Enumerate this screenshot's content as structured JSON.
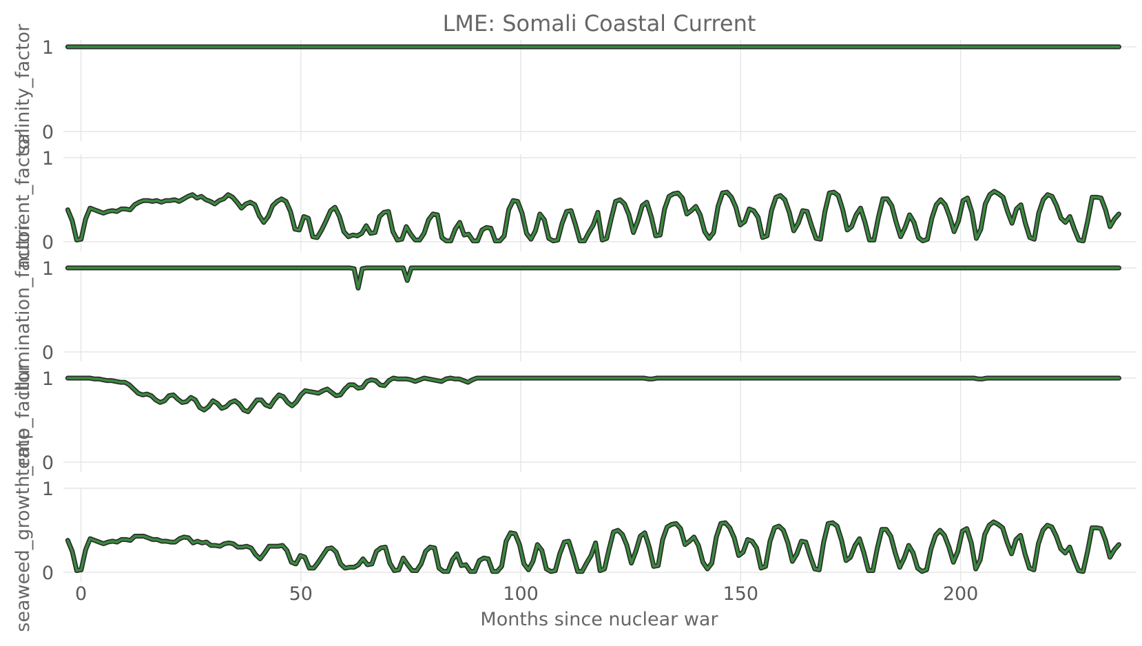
{
  "chart_data": {
    "type": "line",
    "title": "LME: Somali Coastal Current",
    "xlabel": "Months since nuclear war",
    "xlim": [
      -4,
      240
    ],
    "x_ticks": [
      "0",
      "50",
      "100",
      "150",
      "200"
    ],
    "x_tick_values": [
      0,
      50,
      100,
      150,
      200
    ],
    "y_ticks": [
      "0",
      "1"
    ],
    "y_tick_values": [
      0,
      1
    ],
    "colors": {
      "line": "#3a8a3e",
      "outline": "#2b2b2b",
      "grid": "#e5e5e5",
      "text": "#595959"
    },
    "panels": [
      {
        "ylabel": "salinity_factor",
        "ylim": [
          0,
          1
        ],
        "x_start": -3,
        "x_end": 236,
        "values": [
          1,
          1
        ]
      },
      {
        "ylabel": "nutrient_factor",
        "ylim": [
          0,
          1
        ],
        "x_start": -3,
        "x_end": 236,
        "values": [
          0.38,
          0.25,
          0.02,
          0.03,
          0.27,
          0.4,
          0.38,
          0.36,
          0.34,
          0.36,
          0.37,
          0.36,
          0.39,
          0.39,
          0.38,
          0.44,
          0.47,
          0.49,
          0.49,
          0.48,
          0.49,
          0.47,
          0.49,
          0.49,
          0.5,
          0.48,
          0.51,
          0.54,
          0.56,
          0.52,
          0.54,
          0.5,
          0.48,
          0.45,
          0.49,
          0.51,
          0.56,
          0.53,
          0.47,
          0.4,
          0.45,
          0.47,
          0.44,
          0.31,
          0.23,
          0.3,
          0.43,
          0.48,
          0.51,
          0.48,
          0.36,
          0.15,
          0.14,
          0.3,
          0.28,
          0.06,
          0.05,
          0.14,
          0.25,
          0.37,
          0.41,
          0.3,
          0.12,
          0.06,
          0.08,
          0.07,
          0.1,
          0.19,
          0.1,
          0.11,
          0.3,
          0.35,
          0.36,
          0.12,
          0.02,
          0.03,
          0.18,
          0.09,
          0.02,
          0.02,
          0.1,
          0.26,
          0.33,
          0.32,
          0.05,
          0.01,
          0.01,
          0.15,
          0.23,
          0.08,
          0.09,
          0.01,
          0.01,
          0.14,
          0.17,
          0.16,
          0.01,
          0.01,
          0.07,
          0.38,
          0.49,
          0.48,
          0.34,
          0.1,
          0.03,
          0.13,
          0.33,
          0.26,
          0.04,
          0.01,
          0.02,
          0.22,
          0.36,
          0.37,
          0.2,
          0.01,
          0.01,
          0.11,
          0.2,
          0.35,
          0.02,
          0.04,
          0.27,
          0.48,
          0.5,
          0.45,
          0.32,
          0.11,
          0.25,
          0.43,
          0.47,
          0.3,
          0.07,
          0.08,
          0.39,
          0.54,
          0.57,
          0.58,
          0.52,
          0.33,
          0.37,
          0.42,
          0.32,
          0.12,
          0.04,
          0.11,
          0.42,
          0.58,
          0.59,
          0.53,
          0.41,
          0.2,
          0.24,
          0.39,
          0.37,
          0.29,
          0.05,
          0.07,
          0.37,
          0.53,
          0.55,
          0.5,
          0.35,
          0.13,
          0.22,
          0.37,
          0.36,
          0.19,
          0.04,
          0.03,
          0.36,
          0.58,
          0.59,
          0.55,
          0.38,
          0.14,
          0.18,
          0.32,
          0.4,
          0.23,
          0.02,
          0.02,
          0.29,
          0.51,
          0.51,
          0.43,
          0.23,
          0.06,
          0.17,
          0.32,
          0.23,
          0.05,
          0.01,
          0.03,
          0.28,
          0.44,
          0.5,
          0.44,
          0.3,
          0.12,
          0.25,
          0.49,
          0.52,
          0.35,
          0.04,
          0.15,
          0.45,
          0.56,
          0.6,
          0.57,
          0.53,
          0.36,
          0.22,
          0.39,
          0.44,
          0.22,
          0.05,
          0.03,
          0.34,
          0.5,
          0.56,
          0.54,
          0.43,
          0.28,
          0.23,
          0.3,
          0.15,
          0.02,
          0.01,
          0.25,
          0.53,
          0.53,
          0.52,
          0.38,
          0.18,
          0.27,
          0.33
        ]
      },
      {
        "ylabel": "illumination_factor",
        "ylim": [
          0,
          1
        ],
        "x_start": -3,
        "x_end": 236,
        "values": [
          1,
          1,
          1,
          1,
          1,
          1,
          1,
          1,
          1,
          1,
          1,
          1,
          1,
          1,
          1,
          1,
          1,
          1,
          1,
          1,
          1,
          1,
          1,
          1,
          1,
          1,
          1,
          1,
          1,
          1,
          1,
          1,
          1,
          1,
          1,
          1,
          1,
          1,
          1,
          1,
          1,
          1,
          1,
          1,
          1,
          1,
          1,
          1,
          1,
          1,
          1,
          1,
          1,
          1,
          1,
          1,
          1,
          1,
          1,
          1,
          1,
          1,
          1,
          1,
          1,
          1,
          1,
          1,
          1,
          1,
          0.99,
          0.76,
          0.99,
          1,
          1,
          1,
          1,
          1,
          1,
          1,
          1,
          1,
          1,
          0.85,
          1,
          1,
          1,
          1,
          1,
          1,
          1,
          1,
          1,
          1,
          1,
          1,
          1,
          1,
          1,
          1,
          1,
          1,
          1,
          1,
          1,
          1,
          1,
          1,
          1,
          1,
          1,
          1,
          1,
          1,
          1,
          1,
          1,
          1,
          1,
          1,
          1,
          1,
          1,
          1,
          1,
          1,
          1,
          1,
          1,
          1,
          1,
          1,
          1,
          1,
          1,
          1,
          1,
          1,
          1,
          1,
          1,
          1,
          1,
          1,
          1,
          1,
          1,
          1,
          1,
          1,
          1,
          1,
          1,
          1,
          1,
          1,
          1,
          1,
          1,
          1,
          1,
          1,
          1,
          1,
          1,
          1,
          1,
          1,
          1,
          1,
          1,
          1,
          1,
          1,
          1,
          1,
          1,
          1,
          1,
          1,
          1,
          1,
          1,
          1,
          1,
          1,
          1,
          1,
          1,
          1,
          1,
          1,
          1,
          1,
          1,
          1,
          1,
          1,
          1,
          1,
          1,
          1,
          1,
          1,
          1,
          1,
          1,
          1,
          1,
          1,
          1,
          1,
          1,
          1,
          1,
          1,
          1,
          1,
          1,
          1,
          1,
          1,
          1,
          1,
          1,
          1,
          1,
          1,
          1,
          1,
          1,
          1,
          1,
          1,
          1,
          1,
          1,
          1,
          1,
          1,
          1,
          1,
          1,
          1,
          1,
          1,
          1,
          1,
          1,
          1,
          1,
          1,
          1,
          1,
          1,
          1,
          1,
          1
        ]
      },
      {
        "ylabel": "temp_factor",
        "ylim": [
          0,
          1
        ],
        "x_start": -3,
        "x_end": 236,
        "values": [
          1.0,
          1.0,
          1.0,
          1.0,
          1.0,
          1.0,
          0.99,
          0.99,
          0.98,
          0.97,
          0.97,
          0.96,
          0.95,
          0.95,
          0.92,
          0.87,
          0.82,
          0.8,
          0.81,
          0.79,
          0.74,
          0.71,
          0.73,
          0.79,
          0.8,
          0.75,
          0.71,
          0.72,
          0.77,
          0.74,
          0.65,
          0.62,
          0.66,
          0.73,
          0.7,
          0.64,
          0.66,
          0.71,
          0.73,
          0.69,
          0.62,
          0.6,
          0.67,
          0.74,
          0.74,
          0.68,
          0.66,
          0.74,
          0.8,
          0.78,
          0.71,
          0.67,
          0.72,
          0.8,
          0.85,
          0.84,
          0.83,
          0.82,
          0.85,
          0.87,
          0.83,
          0.79,
          0.8,
          0.87,
          0.92,
          0.92,
          0.88,
          0.89,
          0.96,
          0.98,
          0.97,
          0.92,
          0.91,
          0.97,
          1.0,
          0.99,
          0.99,
          0.99,
          0.98,
          0.96,
          0.98,
          1.0,
          0.99,
          0.98,
          0.97,
          0.96,
          0.99,
          1.0,
          0.99,
          0.99,
          0.97,
          0.95,
          0.98,
          1.0,
          1.0,
          1.0,
          1.0,
          1.0,
          1.0,
          1.0,
          1.0,
          1.0,
          1.0,
          1.0,
          1.0,
          1.0,
          1.0,
          1.0,
          1.0,
          1.0,
          1.0,
          1.0,
          1.0,
          1.0,
          1.0,
          1.0,
          1.0,
          1.0,
          1.0,
          1.0,
          1.0,
          1.0,
          1.0,
          1.0,
          1.0,
          1.0,
          1.0,
          1.0,
          1.0,
          1.0,
          1.0,
          1.0,
          0.99,
          0.99,
          1.0,
          1.0,
          1.0,
          1.0,
          1.0,
          1.0,
          1.0,
          1.0,
          1.0,
          1.0,
          1.0,
          1.0,
          1.0,
          1.0,
          1.0,
          1.0,
          1.0,
          1.0,
          1.0,
          1.0,
          1.0,
          1.0,
          1.0,
          1.0,
          1.0,
          1.0,
          1.0,
          1.0,
          1.0,
          1.0,
          1.0,
          1.0,
          1.0,
          1.0,
          1.0,
          1.0,
          1.0,
          1.0,
          1.0,
          1.0,
          1.0,
          1.0,
          1.0,
          1.0,
          1.0,
          1.0,
          1.0,
          1.0,
          1.0,
          1.0,
          1.0,
          1.0,
          1.0,
          1.0,
          1.0,
          1.0,
          1.0,
          1.0,
          1.0,
          1.0,
          1.0,
          1.0,
          1.0,
          1.0,
          1.0,
          1.0,
          1.0,
          1.0,
          1.0,
          1.0,
          1.0,
          1.0,
          1.0,
          0.99,
          0.99,
          1.0,
          1.0,
          1.0,
          1.0,
          1.0,
          1.0,
          1.0,
          1.0,
          1.0,
          1.0,
          1.0,
          1.0,
          1.0,
          1.0,
          1.0,
          1.0,
          1.0,
          1.0,
          1.0,
          1.0,
          1.0,
          1.0,
          1.0,
          1.0,
          1.0,
          1.0,
          1.0,
          1.0,
          1.0,
          1.0,
          1.0
        ]
      },
      {
        "ylabel": "seaweed_growth_rate",
        "ylim": [
          0,
          1
        ],
        "x_start": -3,
        "x_end": 236,
        "values": [
          0.38,
          0.25,
          0.02,
          0.03,
          0.27,
          0.4,
          0.38,
          0.36,
          0.34,
          0.36,
          0.37,
          0.36,
          0.39,
          0.39,
          0.38,
          0.43,
          0.43,
          0.43,
          0.41,
          0.39,
          0.39,
          0.37,
          0.37,
          0.36,
          0.36,
          0.4,
          0.42,
          0.41,
          0.35,
          0.37,
          0.35,
          0.36,
          0.32,
          0.32,
          0.31,
          0.34,
          0.35,
          0.34,
          0.3,
          0.3,
          0.31,
          0.29,
          0.21,
          0.16,
          0.23,
          0.31,
          0.31,
          0.31,
          0.32,
          0.26,
          0.12,
          0.1,
          0.2,
          0.18,
          0.05,
          0.05,
          0.12,
          0.2,
          0.28,
          0.29,
          0.24,
          0.1,
          0.05,
          0.06,
          0.06,
          0.09,
          0.16,
          0.09,
          0.1,
          0.25,
          0.29,
          0.3,
          0.11,
          0.02,
          0.03,
          0.17,
          0.09,
          0.02,
          0.02,
          0.1,
          0.25,
          0.3,
          0.29,
          0.05,
          0.01,
          0.01,
          0.15,
          0.22,
          0.08,
          0.09,
          0.01,
          0.01,
          0.14,
          0.17,
          0.16,
          0.01,
          0.01,
          0.07,
          0.37,
          0.47,
          0.46,
          0.33,
          0.1,
          0.03,
          0.13,
          0.33,
          0.26,
          0.04,
          0.01,
          0.02,
          0.22,
          0.36,
          0.37,
          0.2,
          0.01,
          0.01,
          0.11,
          0.2,
          0.35,
          0.02,
          0.04,
          0.27,
          0.48,
          0.5,
          0.45,
          0.32,
          0.11,
          0.25,
          0.43,
          0.47,
          0.3,
          0.07,
          0.08,
          0.39,
          0.54,
          0.57,
          0.58,
          0.52,
          0.33,
          0.37,
          0.42,
          0.32,
          0.12,
          0.04,
          0.11,
          0.42,
          0.58,
          0.59,
          0.53,
          0.41,
          0.2,
          0.24,
          0.39,
          0.37,
          0.29,
          0.05,
          0.07,
          0.37,
          0.53,
          0.55,
          0.5,
          0.35,
          0.13,
          0.22,
          0.37,
          0.36,
          0.19,
          0.04,
          0.03,
          0.36,
          0.58,
          0.59,
          0.55,
          0.38,
          0.14,
          0.18,
          0.32,
          0.4,
          0.23,
          0.02,
          0.02,
          0.29,
          0.51,
          0.51,
          0.43,
          0.23,
          0.06,
          0.17,
          0.32,
          0.23,
          0.05,
          0.01,
          0.03,
          0.28,
          0.44,
          0.5,
          0.44,
          0.3,
          0.12,
          0.25,
          0.49,
          0.52,
          0.35,
          0.04,
          0.15,
          0.45,
          0.56,
          0.6,
          0.57,
          0.53,
          0.36,
          0.22,
          0.39,
          0.44,
          0.22,
          0.05,
          0.03,
          0.34,
          0.5,
          0.56,
          0.54,
          0.43,
          0.28,
          0.23,
          0.3,
          0.15,
          0.02,
          0.01,
          0.25,
          0.53,
          0.53,
          0.52,
          0.38,
          0.18,
          0.27,
          0.33
        ]
      }
    ]
  }
}
